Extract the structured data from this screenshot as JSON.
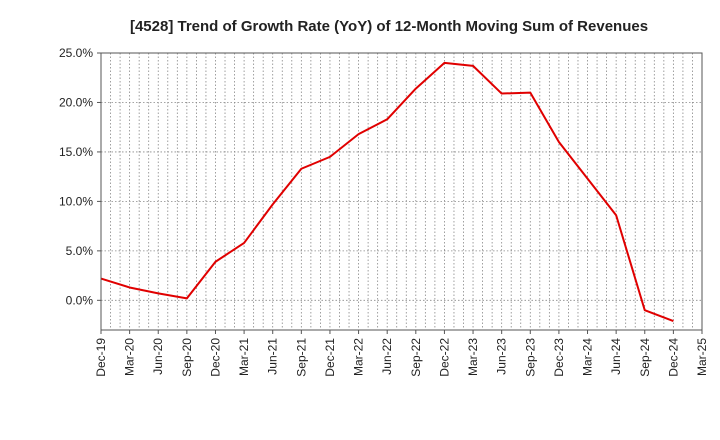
{
  "chart_data": {
    "type": "line",
    "title": "[4528]  Trend of Growth Rate (YoY) of 12-Month Moving Sum of Revenues",
    "xlabel": "",
    "ylabel": "",
    "x_tick_labels": [
      "Dec-19",
      "Mar-20",
      "Jun-20",
      "Sep-20",
      "Dec-20",
      "Mar-21",
      "Jun-21",
      "Sep-21",
      "Dec-21",
      "Mar-22",
      "Jun-22",
      "Sep-22",
      "Dec-22",
      "Mar-23",
      "Jun-23",
      "Sep-23",
      "Dec-23",
      "Mar-24",
      "Jun-24",
      "Sep-24",
      "Dec-24",
      "Mar-25"
    ],
    "y_tick_labels": [
      "25.0%",
      "20.0%",
      "15.0%",
      "10.0%",
      "5.0%",
      "0.0%"
    ],
    "ylim": [
      -3,
      25
    ],
    "y_ticks": [
      25,
      20,
      15,
      10,
      5,
      0
    ],
    "grid": true,
    "grid_style": "dotted",
    "x": [
      "Dec-19",
      "Jan-20",
      "Feb-20",
      "Mar-20",
      "Apr-20",
      "May-20",
      "Jun-20",
      "Jul-20",
      "Aug-20",
      "Sep-20",
      "Oct-20",
      "Nov-20",
      "Dec-20",
      "Jan-21",
      "Feb-21",
      "Mar-21",
      "Apr-21",
      "May-21",
      "Jun-21",
      "Jul-21",
      "Aug-21",
      "Sep-21",
      "Oct-21",
      "Nov-21",
      "Dec-21",
      "Jan-22",
      "Feb-22",
      "Mar-22",
      "Apr-22",
      "May-22",
      "Jun-22",
      "Jul-22",
      "Aug-22",
      "Sep-22",
      "Oct-22",
      "Nov-22",
      "Dec-22",
      "Jan-23",
      "Feb-23",
      "Mar-23",
      "Apr-23",
      "May-23",
      "Jun-23",
      "Jul-23",
      "Aug-23",
      "Sep-23",
      "Oct-23",
      "Nov-23",
      "Dec-23",
      "Jan-24",
      "Feb-24",
      "Mar-24",
      "Apr-24",
      "May-24",
      "Jun-24",
      "Jul-24",
      "Aug-24",
      "Sep-24",
      "Oct-24",
      "Nov-24",
      "Dec-24",
      "Jan-25",
      "Feb-25",
      "Mar-25"
    ],
    "series": [
      {
        "points": [
          {
            "x": "Dec-19",
            "y": 2.2
          },
          {
            "x": "Mar-20",
            "y": 1.3
          },
          {
            "x": "Jun-20",
            "y": 0.7
          },
          {
            "x": "Sep-20",
            "y": 0.2
          },
          {
            "x": "Dec-20",
            "y": 3.9
          },
          {
            "x": "Mar-21",
            "y": 5.8
          },
          {
            "x": "Jun-21",
            "y": 9.7
          },
          {
            "x": "Sep-21",
            "y": 13.3
          },
          {
            "x": "Dec-21",
            "y": 14.5
          },
          {
            "x": "Mar-22",
            "y": 16.8
          },
          {
            "x": "Jun-22",
            "y": 18.3
          },
          {
            "x": "Sep-22",
            "y": 21.4
          },
          {
            "x": "Dec-22",
            "y": 24.0
          },
          {
            "x": "Mar-23",
            "y": 23.7
          },
          {
            "x": "Jun-23",
            "y": 20.9
          },
          {
            "x": "Sep-23",
            "y": 21.0
          },
          {
            "x": "Dec-23",
            "y": 16.0
          },
          {
            "x": "Mar-24",
            "y": 12.3
          },
          {
            "x": "Jun-24",
            "y": 8.6
          },
          {
            "x": "Sep-24",
            "y": -1.0
          },
          {
            "x": "Dec-24",
            "y": -2.1
          }
        ]
      }
    ],
    "line_color": "#e00000",
    "grid_color": "#888888",
    "axis_color": "#555555"
  }
}
